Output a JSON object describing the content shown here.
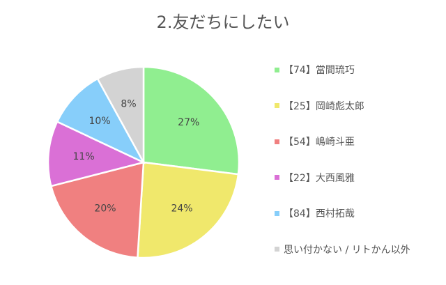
{
  "chart_data": {
    "type": "pie",
    "title": "2.友だちにしたい",
    "slices": [
      {
        "label": "【74】當間琉巧",
        "value": 27,
        "display": "27%",
        "color": "#90EE90"
      },
      {
        "label": "【25】岡崎彪太郎",
        "value": 24,
        "display": "24%",
        "color": "#F0E86C"
      },
      {
        "label": "【54】嶋崎斗亜",
        "value": 20,
        "display": "20%",
        "color": "#F08080"
      },
      {
        "label": "【22】大西風雅",
        "value": 11,
        "display": "11%",
        "color": "#DA70D6"
      },
      {
        "label": "【84】西村拓哉",
        "value": 10,
        "display": "10%",
        "color": "#87CEFA"
      },
      {
        "label": "思い付かない / リトかん以外",
        "value": 8,
        "display": "8%",
        "color": "#D3D3D3"
      }
    ],
    "legend_position": "right"
  }
}
